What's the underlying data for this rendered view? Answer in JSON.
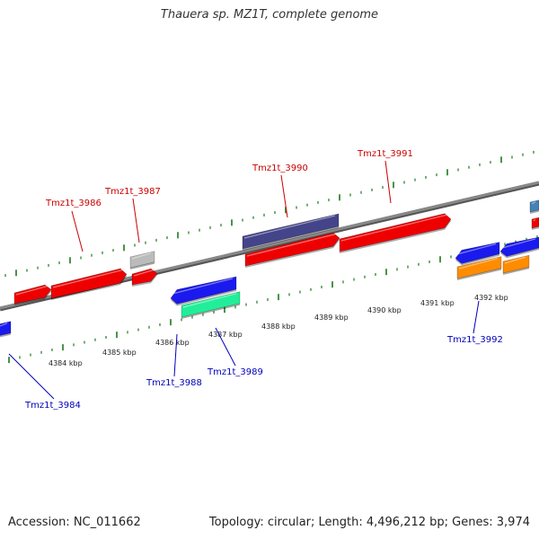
{
  "title": "Thauera sp. MZ1T, complete genome",
  "footer": {
    "accession": "Accession: NC_011662",
    "summary": "Topology: circular; Length: 4,496,212 bp; Genes: 3,974"
  },
  "colors": {
    "forward_label": "#cc0000",
    "reverse_label": "#0000bb",
    "backbone": "#888888",
    "tick": "#1a7a1a",
    "red_gene": "#ee0000",
    "blue_gene": "#1a1aee",
    "purple_gene": "#44448a",
    "teal_gene": "#22ee99",
    "orange_gene": "#ff8c00",
    "gray_gene": "#bbbbbb",
    "steel_gene": "#4682b4"
  },
  "scale_labels": [
    "4384 kbp",
    "4385 kbp",
    "4386 kbp",
    "4387 kbp",
    "4388 kbp",
    "4389 kbp",
    "4390 kbp",
    "4391 kbp",
    "4392 kbp"
  ],
  "genes": [
    {
      "name": "Tmz1t_3984",
      "strand": "reverse"
    },
    {
      "name": "Tmz1t_3986",
      "strand": "forward"
    },
    {
      "name": "Tmz1t_3987",
      "strand": "forward"
    },
    {
      "name": "Tmz1t_3988",
      "strand": "reverse"
    },
    {
      "name": "Tmz1t_3989",
      "strand": "reverse"
    },
    {
      "name": "Tmz1t_3990",
      "strand": "forward"
    },
    {
      "name": "Tmz1t_3991",
      "strand": "forward"
    },
    {
      "name": "Tmz1t_3992",
      "strand": "reverse"
    }
  ]
}
